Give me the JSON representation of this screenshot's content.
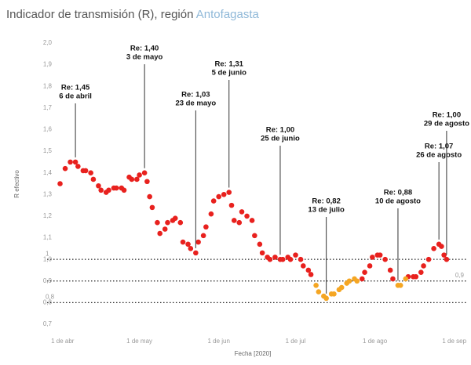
{
  "chart_data": {
    "type": "scatter",
    "title": "Indicador de transmisión (R), región",
    "title_region": "Antofagasta",
    "y_label": "R efectivo",
    "x_label": "Fecha [2020]",
    "xlim": [
      "2020-03-29",
      "2020-09-06"
    ],
    "xticks": [
      {
        "value": "2020-04-01",
        "label": "1 de abr"
      },
      {
        "value": "2020-05-01",
        "label": "1 de may"
      },
      {
        "value": "2020-06-01",
        "label": "1 de jun"
      },
      {
        "value": "2020-07-01",
        "label": "1 de jul"
      },
      {
        "value": "2020-08-01",
        "label": "1 de ago"
      },
      {
        "value": "2020-09-01",
        "label": "1 de sep"
      }
    ],
    "ylim": [
      0.7,
      2.0
    ],
    "yticks": [
      {
        "value": 0.7,
        "label": "0,7"
      },
      {
        "value": 0.8,
        "label": "0,8"
      },
      {
        "value": 0.9,
        "label": "0,9"
      },
      {
        "value": 1.0,
        "label": "1,0"
      },
      {
        "value": 1.1,
        "label": "1,1"
      },
      {
        "value": 1.2,
        "label": "1,2"
      },
      {
        "value": 1.3,
        "label": "1,3"
      },
      {
        "value": 1.4,
        "label": "1,4"
      },
      {
        "value": 1.5,
        "label": "1,5"
      },
      {
        "value": 1.6,
        "label": "1,6"
      },
      {
        "value": 1.7,
        "label": "1,7"
      },
      {
        "value": 1.8,
        "label": "1,8"
      },
      {
        "value": 1.9,
        "label": "1,9"
      },
      {
        "value": 2.0,
        "label": "2,0"
      }
    ],
    "reference_lines": [
      {
        "value": 1.0,
        "label": "1"
      },
      {
        "value": 0.9,
        "label": "0,9"
      },
      {
        "value": 0.8,
        "label": "0,8"
      }
    ],
    "series": [
      {
        "color": "#e8211e",
        "x": [
          "2020-03-31",
          "2020-04-02",
          "2020-04-04",
          "2020-04-06",
          "2020-04-07",
          "2020-04-09",
          "2020-04-10",
          "2020-04-12",
          "2020-04-13",
          "2020-04-15",
          "2020-04-16",
          "2020-04-18",
          "2020-04-19",
          "2020-04-21",
          "2020-04-22",
          "2020-04-24",
          "2020-04-25",
          "2020-04-27",
          "2020-04-28",
          "2020-04-30",
          "2020-05-01",
          "2020-05-03",
          "2020-05-04",
          "2020-05-05",
          "2020-05-06",
          "2020-05-08",
          "2020-05-09",
          "2020-05-11",
          "2020-05-12",
          "2020-05-14",
          "2020-05-15",
          "2020-05-17",
          "2020-05-18",
          "2020-05-20",
          "2020-05-21",
          "2020-05-23",
          "2020-05-24",
          "2020-05-26",
          "2020-05-27",
          "2020-05-29",
          "2020-05-30",
          "2020-06-01",
          "2020-06-03",
          "2020-06-05",
          "2020-06-06",
          "2020-06-07",
          "2020-06-09",
          "2020-06-10",
          "2020-06-12",
          "2020-06-14",
          "2020-06-15",
          "2020-06-17",
          "2020-06-18",
          "2020-06-20",
          "2020-06-21",
          "2020-06-23",
          "2020-06-25",
          "2020-06-26",
          "2020-06-28",
          "2020-06-29",
          "2020-07-01",
          "2020-07-03",
          "2020-07-04",
          "2020-07-06",
          "2020-07-07",
          "2020-07-27",
          "2020-07-28",
          "2020-07-30",
          "2020-07-31",
          "2020-08-02",
          "2020-08-03",
          "2020-08-05",
          "2020-08-07",
          "2020-08-08",
          "2020-08-14",
          "2020-08-16",
          "2020-08-17",
          "2020-08-19",
          "2020-08-20",
          "2020-08-22",
          "2020-08-24",
          "2020-08-26",
          "2020-08-27",
          "2020-08-28",
          "2020-08-29"
        ],
        "values": [
          1.35,
          1.42,
          1.45,
          1.45,
          1.43,
          1.41,
          1.41,
          1.4,
          1.37,
          1.34,
          1.32,
          1.31,
          1.32,
          1.33,
          1.33,
          1.33,
          1.32,
          1.38,
          1.37,
          1.37,
          1.39,
          1.4,
          1.36,
          1.29,
          1.24,
          1.17,
          1.12,
          1.14,
          1.17,
          1.18,
          1.19,
          1.17,
          1.08,
          1.07,
          1.05,
          1.03,
          1.08,
          1.11,
          1.15,
          1.21,
          1.27,
          1.29,
          1.3,
          1.31,
          1.25,
          1.18,
          1.17,
          1.22,
          1.2,
          1.18,
          1.11,
          1.07,
          1.03,
          1.01,
          1.0,
          1.01,
          1.0,
          1.0,
          1.01,
          1.0,
          1.02,
          1.0,
          0.97,
          0.95,
          0.93,
          0.91,
          0.94,
          0.97,
          1.01,
          1.02,
          1.02,
          1.0,
          0.95,
          0.91,
          0.92,
          0.92,
          0.92,
          0.94,
          0.97,
          1.0,
          1.05,
          1.07,
          1.06,
          1.02,
          1.0
        ]
      },
      {
        "color": "#f5a623",
        "x": [
          "2020-07-09",
          "2020-07-10",
          "2020-07-12",
          "2020-07-13",
          "2020-07-15",
          "2020-07-16",
          "2020-07-18",
          "2020-07-19",
          "2020-07-21",
          "2020-07-22",
          "2020-07-24",
          "2020-07-25",
          "2020-08-10",
          "2020-08-11",
          "2020-08-13"
        ],
        "values": [
          0.88,
          0.85,
          0.83,
          0.82,
          0.84,
          0.84,
          0.86,
          0.87,
          0.89,
          0.9,
          0.91,
          0.9,
          0.88,
          0.88,
          0.91
        ]
      }
    ],
    "annotations": [
      {
        "text": [
          "Re: 1,45",
          "6 de abril"
        ],
        "x": "2020-04-06",
        "y": 1.45
      },
      {
        "text": [
          "Re: 1,40",
          "3 de mayo"
        ],
        "x": "2020-05-03",
        "y": 1.4
      },
      {
        "text": [
          "Re: 1,03",
          "23 de mayo"
        ],
        "x": "2020-05-23",
        "y": 1.03
      },
      {
        "text": [
          "Re: 1,31",
          "5 de junio"
        ],
        "x": "2020-06-05",
        "y": 1.31
      },
      {
        "text": [
          "Re: 1,00",
          "25 de junio"
        ],
        "x": "2020-06-25",
        "y": 1.0
      },
      {
        "text": [
          "Re: 0,82",
          "13 de julio"
        ],
        "x": "2020-07-13",
        "y": 0.82
      },
      {
        "text": [
          "Re: 0,88",
          "10 de agosto"
        ],
        "x": "2020-08-10",
        "y": 0.88
      },
      {
        "text": [
          "Re: 1,07",
          "26 de agosto"
        ],
        "x": "2020-08-26",
        "y": 1.07
      },
      {
        "text": [
          "Re: 1,00",
          "29 de agosto"
        ],
        "x": "2020-08-29",
        "y": 1.0
      }
    ]
  }
}
